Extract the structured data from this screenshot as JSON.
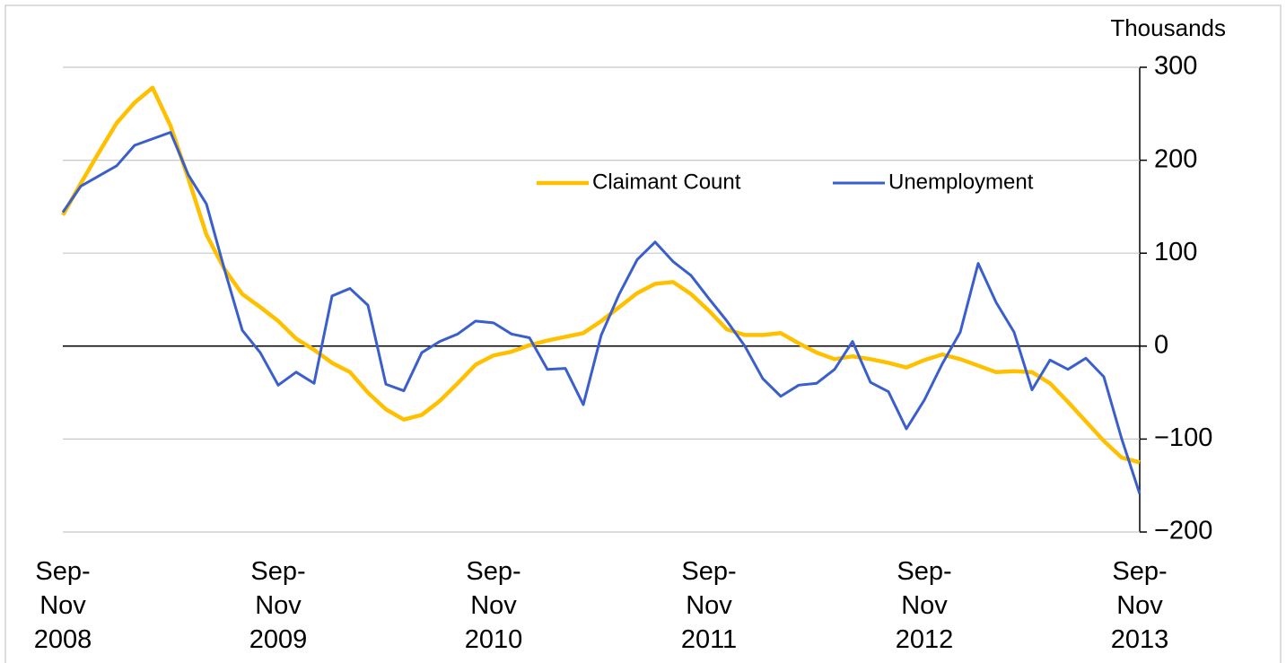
{
  "chart_data": {
    "type": "line",
    "axis_label": "Thousands",
    "categories": [
      "Sep-\nNov\n2008",
      null,
      null,
      null,
      null,
      null,
      null,
      null,
      null,
      null,
      null,
      null,
      "Sep-\nNov\n2009",
      null,
      null,
      null,
      null,
      null,
      null,
      null,
      null,
      null,
      null,
      null,
      "Sep-\nNov\n2010",
      null,
      null,
      null,
      null,
      null,
      null,
      null,
      null,
      null,
      null,
      null,
      "Sep-\nNov\n2011",
      null,
      null,
      null,
      null,
      null,
      null,
      null,
      null,
      null,
      null,
      null,
      "Sep-\nNov\n2012",
      null,
      null,
      null,
      null,
      null,
      null,
      null,
      null,
      null,
      null,
      null,
      "Sep-\nNov\n2013"
    ],
    "series": [
      {
        "name": "Claimant Count",
        "color": "#ffc000",
        "values": [
          141,
          175,
          208,
          240,
          262,
          278,
          237,
          180,
          120,
          83,
          56,
          42,
          27,
          8,
          -4,
          -18,
          -28,
          -50,
          -68,
          -79,
          -74,
          -59,
          -40,
          -20,
          -10,
          -6,
          1,
          6,
          10,
          14,
          27,
          42,
          57,
          67,
          69,
          56,
          38,
          18,
          12,
          12,
          14,
          3,
          -7,
          -14,
          -11,
          -14,
          -18,
          -23,
          -15,
          -9,
          -14,
          -21,
          -28,
          -27,
          -28,
          -40,
          -60,
          -81,
          -102,
          -120,
          -125
        ]
      },
      {
        "name": "Unemployment",
        "color": "#3a5fcd",
        "values": [
          144,
          172,
          183,
          194,
          216,
          223,
          230,
          184,
          153,
          83,
          17,
          -7,
          -42,
          -28,
          -40,
          54,
          62,
          44,
          -41,
          -48,
          -7,
          5,
          13,
          27,
          25,
          13,
          9,
          -25,
          -24,
          -63,
          12,
          56,
          93,
          112,
          91,
          76,
          51,
          27,
          0,
          -35,
          -54,
          -42,
          -40,
          -25,
          5,
          -39,
          -49,
          -89,
          -58,
          -19,
          15,
          89,
          47,
          15,
          -47,
          -15,
          -25,
          -13,
          -33,
          -100,
          -159
        ]
      }
    ],
    "ylim": [
      -200,
      300
    ],
    "yticks": [
      {
        "value": -200,
        "label": "−200"
      },
      {
        "value": -100,
        "label": "−100"
      },
      0,
      100,
      200,
      300
    ],
    "grid": true
  }
}
